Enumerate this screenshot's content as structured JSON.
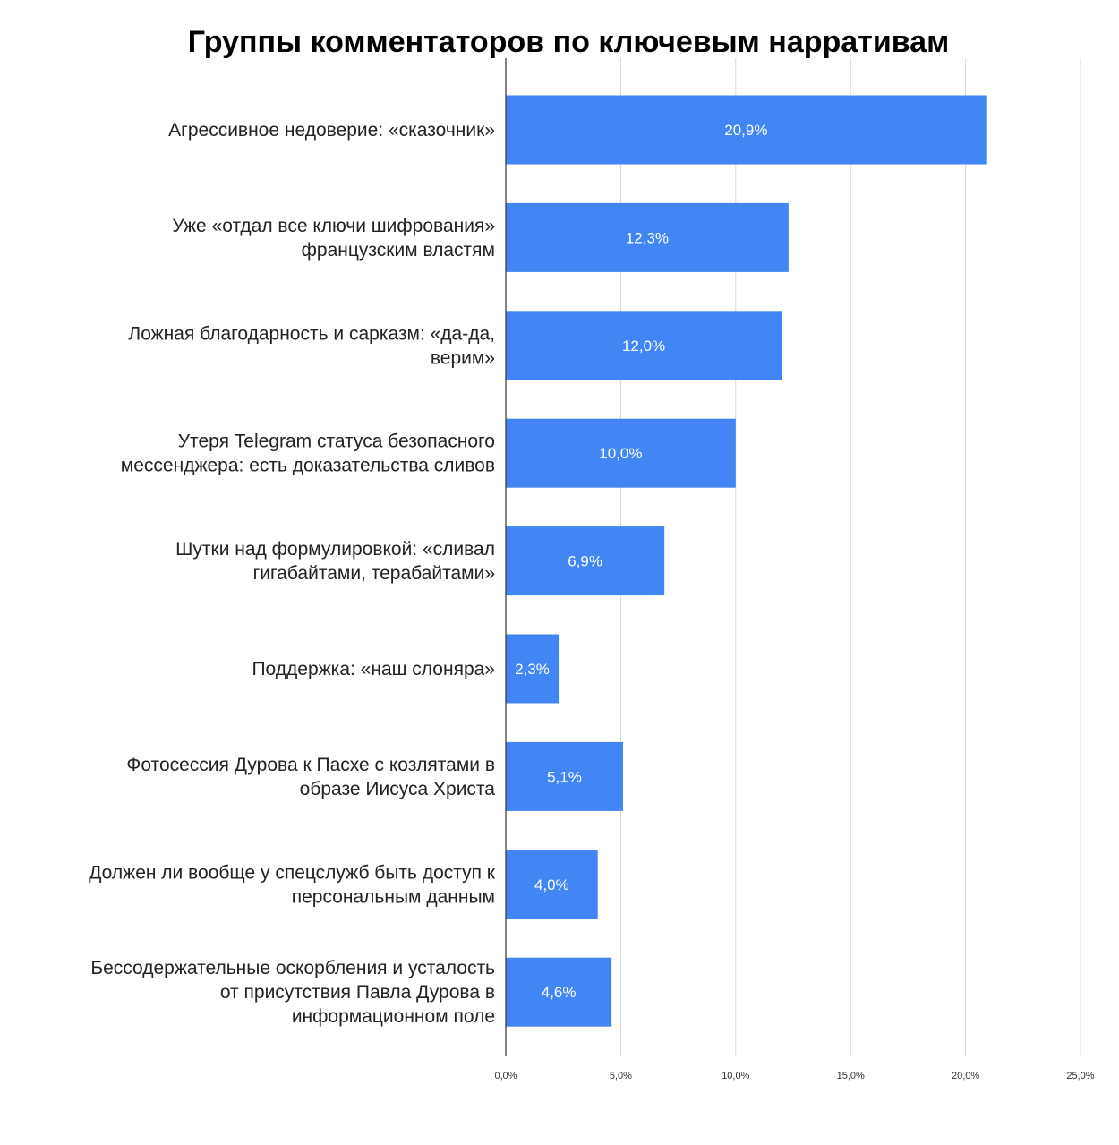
{
  "chart_data": {
    "type": "bar",
    "orientation": "horizontal",
    "title": "Группы комментаторов по ключевым нарративам",
    "xlabel": "",
    "ylabel": "",
    "xlim": [
      0,
      25
    ],
    "grid": true,
    "bar_color": "#4285f4",
    "categories": [
      [
        "Агрессивное недоверие: «сказочник»"
      ],
      [
        "Уже «отдал все ключи шифрования»",
        "французским властям"
      ],
      [
        "Ложная благодарность и сарказм: «да-да,",
        "верим»"
      ],
      [
        "Утеря Telegram статуса безопасного",
        "мессенджера: есть доказательства сливов"
      ],
      [
        "Шутки над формулировкой: «сливал",
        "гигабайтами, терабайтами»"
      ],
      [
        "Поддержка: «наш слоняра»"
      ],
      [
        "Фотосессия Дурова к Пасхе с козлятами в",
        "образе Иисуса Христа"
      ],
      [
        "Должен ли вообще у спецслужб быть доступ к",
        "персональным данным"
      ],
      [
        "Бессодержательные оскорбления и усталость",
        "от присутствия Павла Дурова в",
        "информационном поле"
      ]
    ],
    "values": [
      20.9,
      12.3,
      12.0,
      10.0,
      6.9,
      2.3,
      5.1,
      4.0,
      4.6
    ],
    "value_labels": [
      "20,9%",
      "12,3%",
      "12,0%",
      "10,0%",
      "6,9%",
      "2,3%",
      "5,1%",
      "4,0%",
      "4,6%"
    ],
    "ticks": [
      0,
      5,
      10,
      15,
      20,
      25
    ],
    "tick_labels": [
      "0,0%",
      "5,0%",
      "10,0%",
      "15,0%",
      "20,0%",
      "25,0%"
    ]
  }
}
